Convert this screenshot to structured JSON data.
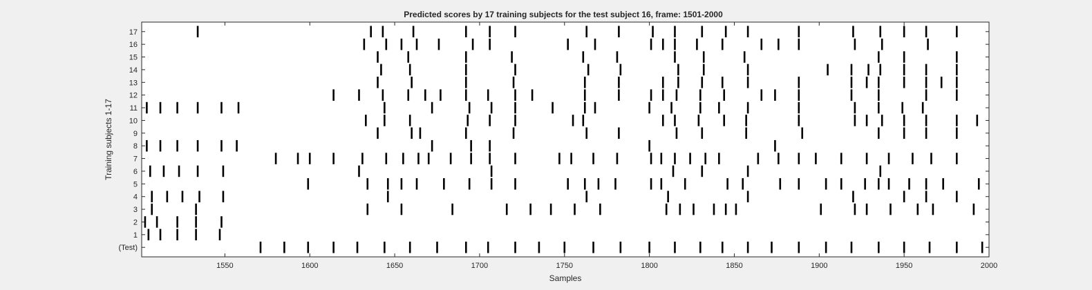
{
  "chart_data": {
    "type": "raster",
    "title": "Predicted scores by 17 training subjects for the test subject 16, frame: 1501-2000",
    "xlabel": "Samples",
    "ylabel": "Training subjects 1-17",
    "xlim": [
      1501,
      2000
    ],
    "xticks": [
      1550,
      1600,
      1650,
      1700,
      1750,
      1800,
      1850,
      1900,
      1950,
      2000
    ],
    "grid": false,
    "legend": "none",
    "rows": [
      {
        "label": "(Test)",
        "events": [
          1571,
          1585,
          1599,
          1614,
          1628,
          1644,
          1659,
          1675,
          1692,
          1705,
          1721,
          1735,
          1750,
          1767,
          1783,
          1800,
          1815,
          1830,
          1843,
          1858,
          1872,
          1888,
          1904,
          1919,
          1935,
          1950,
          1965,
          1981,
          1996
        ]
      },
      {
        "label": "1",
        "events": [
          1505,
          1512,
          1522,
          1533,
          1547
        ]
      },
      {
        "label": "2",
        "events": [
          1503,
          1510,
          1522,
          1533,
          1548
        ]
      },
      {
        "label": "3",
        "events": [
          1507,
          1533,
          1634,
          1654,
          1684,
          1716,
          1730,
          1742,
          1756,
          1771,
          1810,
          1818,
          1826,
          1838,
          1845,
          1851,
          1901,
          1921,
          1928,
          1942,
          1958,
          1967,
          1991
        ]
      },
      {
        "label": "4",
        "events": [
          1507,
          1516,
          1525,
          1535,
          1549,
          1646,
          1763,
          1811,
          1858,
          1920,
          1950,
          1963,
          1981
        ]
      },
      {
        "label": "5",
        "events": [
          1599,
          1634,
          1646,
          1654,
          1663,
          1679,
          1694,
          1707,
          1721,
          1752,
          1762,
          1770,
          1780,
          1801,
          1807,
          1821,
          1846,
          1855,
          1877,
          1888,
          1904,
          1913,
          1927,
          1935,
          1941,
          1953,
          1963,
          1973,
          1994
        ]
      },
      {
        "label": "6",
        "events": [
          1506,
          1514,
          1523,
          1534,
          1549,
          1629,
          1707,
          1814,
          1831,
          1858,
          1936
        ]
      },
      {
        "label": "7",
        "events": [
          1580,
          1593,
          1600,
          1614,
          1631,
          1645,
          1655,
          1664,
          1670,
          1683,
          1695,
          1706,
          1721,
          1747,
          1754,
          1767,
          1781,
          1801,
          1807,
          1815,
          1824,
          1833,
          1841,
          1864,
          1876,
          1888,
          1898,
          1913,
          1928,
          1941,
          1955,
          1966,
          1981
        ]
      },
      {
        "label": "8",
        "events": [
          1504,
          1512,
          1522,
          1534,
          1548,
          1557,
          1672,
          1695,
          1706,
          1800,
          1874
        ]
      },
      {
        "label": "9",
        "events": [
          1640,
          1660,
          1665,
          1692,
          1720,
          1763,
          1782,
          1816,
          1831,
          1857,
          1890,
          1935,
          1950,
          1963,
          1981
        ]
      },
      {
        "label": "10",
        "events": [
          1633,
          1644,
          1659,
          1693,
          1706,
          1721,
          1755,
          1761,
          1808,
          1815,
          1829,
          1844,
          1857,
          1888,
          1921,
          1928,
          1937,
          1950,
          1963,
          1981,
          1993
        ]
      },
      {
        "label": "11",
        "events": [
          1504,
          1512,
          1522,
          1534,
          1548,
          1558,
          1644,
          1672,
          1694,
          1707,
          1721,
          1743,
          1762,
          1768,
          1800,
          1813,
          1830,
          1841,
          1858,
          1888,
          1921,
          1935,
          1949,
          1961
        ]
      },
      {
        "label": "12",
        "events": [
          1614,
          1629,
          1643,
          1658,
          1668,
          1677,
          1692,
          1705,
          1721,
          1731,
          1762,
          1782,
          1801,
          1808,
          1816,
          1830,
          1844,
          1866,
          1874,
          1888,
          1919,
          1935,
          1963,
          1981
        ]
      },
      {
        "label": "13",
        "events": [
          1640,
          1660,
          1692,
          1720,
          1762,
          1782,
          1808,
          1817,
          1831,
          1843,
          1858,
          1888,
          1919,
          1928,
          1935,
          1950,
          1963,
          1972,
          1981
        ]
      },
      {
        "label": "14",
        "events": [
          1642,
          1659,
          1692,
          1721,
          1764,
          1783,
          1817,
          1832,
          1858,
          1905,
          1919,
          1929,
          1936,
          1950,
          1963,
          1981
        ]
      },
      {
        "label": "15",
        "events": [
          1640,
          1658,
          1692,
          1719,
          1761,
          1781,
          1815,
          1832,
          1856,
          1935,
          1950,
          1981
        ]
      },
      {
        "label": "16",
        "events": [
          1632,
          1645,
          1654,
          1663,
          1676,
          1696,
          1706,
          1752,
          1768,
          1801,
          1808,
          1815,
          1828,
          1843,
          1866,
          1876,
          1888,
          1921,
          1937,
          1964
        ]
      },
      {
        "label": "17",
        "events": [
          1534,
          1636,
          1643,
          1661,
          1692,
          1706,
          1721,
          1763,
          1782,
          1802,
          1815,
          1831,
          1845,
          1858,
          1888,
          1920,
          1936,
          1950,
          1963,
          1981
        ]
      }
    ]
  }
}
